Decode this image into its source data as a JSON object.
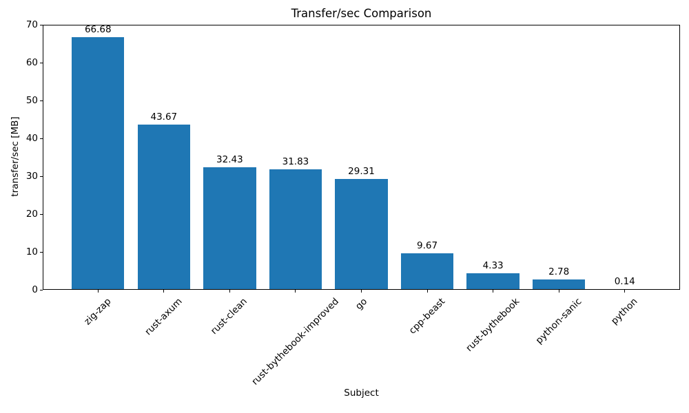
{
  "chart_data": {
    "type": "bar",
    "title": "Transfer/sec Comparison",
    "xlabel": "Subject",
    "ylabel": "transfer/sec [MB]",
    "categories": [
      "zig-zap",
      "rust-axum",
      "rust-clean",
      "rust-bythebook-improved",
      "go",
      "cpp-beast",
      "rust-bythebook",
      "python-sanic",
      "python"
    ],
    "values": [
      66.68,
      43.67,
      32.43,
      31.83,
      29.31,
      9.67,
      4.33,
      2.78,
      0.14
    ],
    "value_labels": [
      "66.68",
      "43.67",
      "32.43",
      "31.83",
      "29.31",
      "9.67",
      "4.33",
      "2.78",
      "0.14"
    ],
    "ylim": [
      0,
      70
    ],
    "yticks": [
      0,
      10,
      20,
      30,
      40,
      50,
      60,
      70
    ],
    "bar_color": "#1f77b4",
    "bar_width_fraction": 0.8,
    "grid": false,
    "legend": "none",
    "background_color": "#ffffff"
  }
}
